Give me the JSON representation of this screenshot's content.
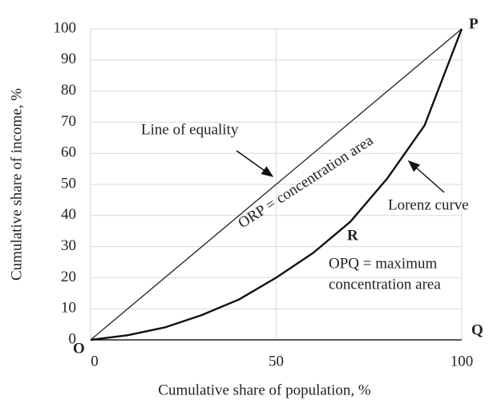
{
  "chart_data": {
    "type": "line",
    "x_label": "Cumulative share of population, %",
    "y_label": "Cumulative share of income, %",
    "xlim": [
      0,
      100
    ],
    "ylim": [
      0,
      100
    ],
    "xticks": [
      0,
      50,
      100
    ],
    "yticks": [
      0,
      10,
      20,
      30,
      40,
      50,
      60,
      70,
      80,
      90,
      100
    ],
    "grid": true,
    "series": [
      {
        "name": "Line of equality",
        "color": "#222222",
        "x": [
          0,
          100
        ],
        "values": [
          0,
          100
        ]
      },
      {
        "name": "Lorenz curve",
        "color": "#111111",
        "x": [
          0,
          10,
          20,
          30,
          40,
          50,
          60,
          70,
          80,
          90,
          100
        ],
        "values": [
          0,
          1.5,
          4,
          8,
          13,
          20,
          28,
          38,
          52,
          69,
          100
        ]
      }
    ],
    "annotations": [
      "ORP = concentration area",
      "OPQ = maximum",
      "concentration area"
    ],
    "point_labels": [
      "P",
      "Q",
      "O",
      "R"
    ]
  }
}
